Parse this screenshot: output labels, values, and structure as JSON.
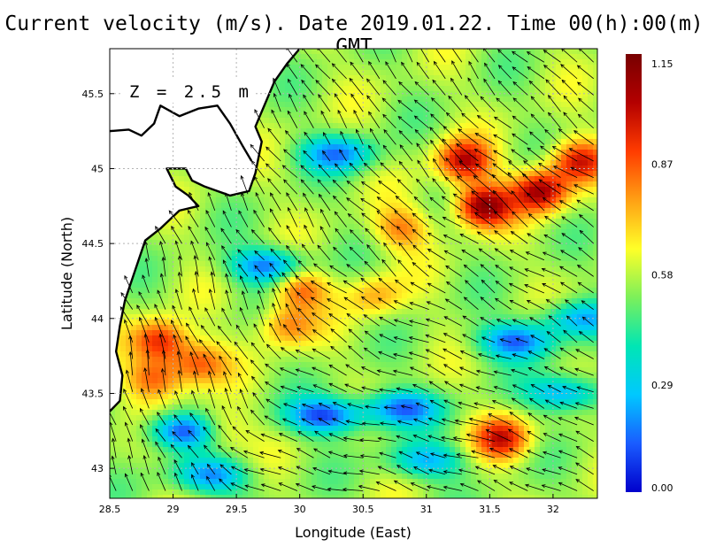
{
  "title": "Current velocity (m/s). Date 2019.01.22. Time 00(h):00(m) GMT",
  "depth_label": "Z = 2.5 m",
  "xlabel": "Longitude (East)",
  "ylabel": "Latitude (North)",
  "x_ticks": [
    "28.5",
    "29",
    "29.5",
    "30",
    "30.5",
    "31",
    "31.5",
    "32"
  ],
  "x_tick_values": [
    28.5,
    29,
    29.5,
    30,
    30.5,
    31,
    31.5,
    32
  ],
  "y_ticks": [
    "43",
    "43.5",
    "44",
    "44.5",
    "45",
    "45.5"
  ],
  "y_tick_values": [
    43,
    43.5,
    44,
    44.5,
    45,
    45.5
  ],
  "colorbar_ticks": [
    "1.15",
    "0.87",
    "0.58",
    "0.29",
    "0.00"
  ],
  "colorbar_tick_values": [
    1.15,
    0.87,
    0.58,
    0.29,
    0.0
  ],
  "colors": {
    "colormap": [
      "#0000cc",
      "#1a5cff",
      "#00c8ff",
      "#00e6b4",
      "#7cf05a",
      "#ffff28",
      "#ffa014",
      "#ff3c00",
      "#b40000",
      "#780000"
    ],
    "land": "#ffffff",
    "coast": "#000000",
    "grid": "#b4b4b4"
  },
  "map_data": {
    "lon_range": [
      28.5,
      32.35
    ],
    "lat_range": [
      42.8,
      45.8
    ],
    "speed_range": [
      0.0,
      1.15
    ],
    "hotspots": [
      {
        "lon": 28.9,
        "lat": 43.85,
        "speed": 0.95
      },
      {
        "lon": 29.2,
        "lat": 43.7,
        "speed": 0.85
      },
      {
        "lon": 28.85,
        "lat": 43.6,
        "speed": 0.85
      },
      {
        "lon": 29.35,
        "lat": 43.25,
        "speed": 0.8
      },
      {
        "lon": 30.0,
        "lat": 44.2,
        "speed": 0.85
      },
      {
        "lon": 29.9,
        "lat": 43.95,
        "speed": 0.8
      },
      {
        "lon": 31.45,
        "lat": 44.75,
        "speed": 1.1
      },
      {
        "lon": 31.3,
        "lat": 45.05,
        "speed": 1.0
      },
      {
        "lon": 31.9,
        "lat": 44.85,
        "speed": 1.05
      },
      {
        "lon": 32.2,
        "lat": 45.05,
        "speed": 0.95
      },
      {
        "lon": 31.6,
        "lat": 43.2,
        "speed": 0.95
      },
      {
        "lon": 30.8,
        "lat": 44.6,
        "speed": 0.8
      },
      {
        "lon": 30.6,
        "lat": 44.15,
        "speed": 0.75
      }
    ],
    "lows": [
      {
        "lon": 30.2,
        "lat": 43.35,
        "speed": 0.1
      },
      {
        "lon": 30.8,
        "lat": 43.4,
        "speed": 0.15
      },
      {
        "lon": 31.7,
        "lat": 43.85,
        "speed": 0.15
      },
      {
        "lon": 32.1,
        "lat": 43.5,
        "speed": 0.2
      },
      {
        "lon": 29.1,
        "lat": 43.25,
        "speed": 0.1
      },
      {
        "lon": 29.75,
        "lat": 44.35,
        "speed": 0.15
      },
      {
        "lon": 29.3,
        "lat": 42.95,
        "speed": 0.2
      },
      {
        "lon": 31.0,
        "lat": 43.05,
        "speed": 0.25
      },
      {
        "lon": 30.3,
        "lat": 45.1,
        "speed": 0.2
      },
      {
        "lon": 32.2,
        "lat": 44.0,
        "speed": 0.25
      }
    ],
    "flow_centers": [
      {
        "lon": 30.4,
        "lat": 43.3,
        "u": -0.55,
        "v": 0.05
      },
      {
        "lon": 31.3,
        "lat": 43.6,
        "u": -0.6,
        "v": 0.2
      },
      {
        "lon": 31.2,
        "lat": 44.9,
        "u": -0.55,
        "v": 0.45
      },
      {
        "lon": 30.5,
        "lat": 45.4,
        "u": -0.3,
        "v": 0.6
      },
      {
        "lon": 29.3,
        "lat": 44.2,
        "u": -0.15,
        "v": 0.55
      },
      {
        "lon": 29.0,
        "lat": 43.7,
        "u": -0.1,
        "v": 0.5
      },
      {
        "lon": 30.3,
        "lat": 44.5,
        "u": -0.4,
        "v": 0.4
      },
      {
        "lon": 32.0,
        "lat": 44.5,
        "u": -0.55,
        "v": 0.35
      }
    ],
    "coastline": [
      {
        "lon": 28.5,
        "lat": 43.38
      },
      {
        "lon": 28.58,
        "lat": 43.45
      },
      {
        "lon": 28.6,
        "lat": 43.62
      },
      {
        "lon": 28.55,
        "lat": 43.78
      },
      {
        "lon": 28.58,
        "lat": 43.95
      },
      {
        "lon": 28.62,
        "lat": 44.12
      },
      {
        "lon": 28.7,
        "lat": 44.32
      },
      {
        "lon": 28.78,
        "lat": 44.52
      },
      {
        "lon": 28.9,
        "lat": 44.6
      },
      {
        "lon": 29.05,
        "lat": 44.72
      },
      {
        "lon": 29.2,
        "lat": 44.75
      },
      {
        "lon": 29.12,
        "lat": 44.82
      },
      {
        "lon": 29.02,
        "lat": 44.88
      },
      {
        "lon": 28.95,
        "lat": 45.0
      },
      {
        "lon": 29.1,
        "lat": 45.0
      },
      {
        "lon": 29.15,
        "lat": 44.92
      },
      {
        "lon": 29.25,
        "lat": 44.88
      },
      {
        "lon": 29.35,
        "lat": 44.85
      },
      {
        "lon": 29.45,
        "lat": 44.82
      },
      {
        "lon": 29.6,
        "lat": 44.85
      },
      {
        "lon": 29.65,
        "lat": 44.97
      },
      {
        "lon": 29.7,
        "lat": 45.18
      },
      {
        "lon": 29.65,
        "lat": 45.28
      },
      {
        "lon": 29.7,
        "lat": 45.38
      },
      {
        "lon": 29.75,
        "lat": 45.48
      },
      {
        "lon": 29.8,
        "lat": 45.58
      },
      {
        "lon": 29.9,
        "lat": 45.7
      },
      {
        "lon": 30.0,
        "lat": 45.8
      }
    ],
    "lagoon": [
      {
        "lon": 28.5,
        "lat": 45.25
      },
      {
        "lon": 28.65,
        "lat": 45.26
      },
      {
        "lon": 28.75,
        "lat": 45.22
      },
      {
        "lon": 28.85,
        "lat": 45.3
      },
      {
        "lon": 28.9,
        "lat": 45.42
      },
      {
        "lon": 29.05,
        "lat": 45.35
      },
      {
        "lon": 29.2,
        "lat": 45.4
      },
      {
        "lon": 29.35,
        "lat": 45.42
      },
      {
        "lon": 29.45,
        "lat": 45.3
      },
      {
        "lon": 29.55,
        "lat": 45.15
      },
      {
        "lon": 29.62,
        "lat": 45.05
      }
    ]
  }
}
